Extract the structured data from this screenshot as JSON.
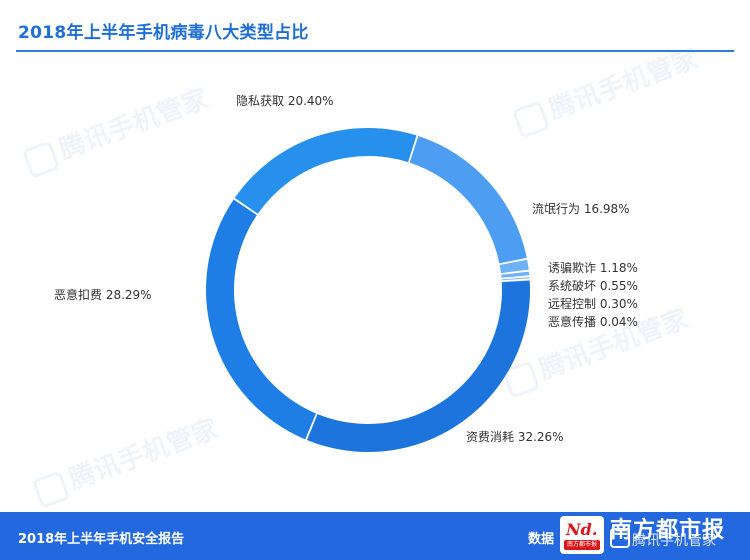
{
  "title": "2018年上半年手机病毒八大类型占比",
  "footer": {
    "left": "2018年上半年手机安全报告",
    "right": "数据",
    "overlay_main": "南方都市报",
    "overlay_sub": "腾讯手机管家",
    "logo_mark": "Nd.",
    "logo_sub": "南方都市报"
  },
  "watermark_text": "腾讯手机管家",
  "colors": {
    "accent": "#2b7de0",
    "footer": "#2468df"
  },
  "chart_data": {
    "type": "pie",
    "donut": true,
    "title": "2018年上半年手机病毒八大类型占比",
    "categories": [
      "流氓行为",
      "诱骗欺诈",
      "系统破坏",
      "远程控制",
      "恶意传播",
      "资费消耗",
      "恶意扣费",
      "隐私获取"
    ],
    "values": [
      16.98,
      1.18,
      0.55,
      0.3,
      0.04,
      32.26,
      28.29,
      20.4
    ],
    "labels": [
      "流氓行为  16.98%",
      "诱骗欺诈  1.18%",
      "系统破坏  0.55%",
      "远程控制  0.30%",
      "恶意传播  0.04%",
      "资费消耗  32.26%",
      "恶意扣费  28.29%",
      "隐私获取  20.40%"
    ],
    "colors": [
      "#4d9ef2",
      "#6fb1f5",
      "#6fb1f5",
      "#7fbaf6",
      "#8fc3f7",
      "#1d74dd",
      "#1f7ee5",
      "#2790ec"
    ]
  }
}
